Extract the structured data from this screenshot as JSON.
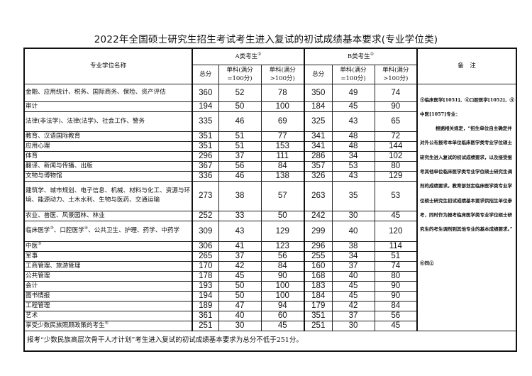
{
  "title": "2022年全国硕士研究生招生考试考生进入复试的初试成绩基本要求(专业学位类)",
  "header": {
    "name_col": "专业学位名称",
    "group_a": "A类考生",
    "group_a_note": "②",
    "group_b": "B类考生",
    "group_b_note": "②",
    "total": "总分",
    "single_100": "单科(满分=100分)",
    "single_gt100": "单科(满分>100分)",
    "remarks": "备　注"
  },
  "rows": [
    {
      "name": "金融、应用统计、税务、国际商务、保险、资产评估",
      "note": "",
      "a": [
        "360",
        "52",
        "78"
      ],
      "b": [
        "350",
        "49",
        "74"
      ]
    },
    {
      "name": "审计",
      "note": "",
      "a": [
        "194",
        "50",
        "100"
      ],
      "b": [
        "184",
        "45",
        "90"
      ]
    },
    {
      "name": "法律(非法学)、法律(法学)、社会工作、警务",
      "note": "",
      "a": [
        "335",
        "46",
        "69"
      ],
      "b": [
        "325",
        "43",
        "65"
      ]
    },
    {
      "name": "教育、汉语国际教育",
      "note": "",
      "a": [
        "351",
        "51",
        "77"
      ],
      "b": [
        "341",
        "48",
        "72"
      ]
    },
    {
      "name": "应用心理",
      "note": "",
      "a": [
        "351",
        "51",
        "153"
      ],
      "b": [
        "341",
        "48",
        "144"
      ]
    },
    {
      "name": "体育",
      "note": "",
      "a": [
        "296",
        "37",
        "111"
      ],
      "b": [
        "286",
        "34",
        "102"
      ]
    },
    {
      "name": "翻译、新闻与传播、出版",
      "note": "",
      "a": [
        "367",
        "56",
        "84"
      ],
      "b": [
        "357",
        "53",
        "80"
      ]
    },
    {
      "name": "文物与博物馆",
      "note": "",
      "a": [
        "336",
        "46",
        "138"
      ],
      "b": [
        "326",
        "43",
        "129"
      ]
    },
    {
      "name": "建筑学、城市规划、电子信息、机械、材料与化工、资源与环境、能源动力、土木水利、生物与医药、交通运输",
      "note": "",
      "a": [
        "273",
        "38",
        "57"
      ],
      "b": [
        "263",
        "35",
        "53"
      ]
    },
    {
      "name": "农业、兽医、风景园林、林业",
      "note": "",
      "a": [
        "252",
        "33",
        "50"
      ],
      "b": [
        "242",
        "30",
        "45"
      ]
    },
    {
      "name_parts": [
        "临床医学",
        "③",
        "、口腔医学",
        "④",
        "、公共卫生、护理、药学、中药学"
      ],
      "a": [
        "309",
        "43",
        "129"
      ],
      "b": [
        "299",
        "40",
        "120"
      ]
    },
    {
      "name": "中医",
      "note": "⑤",
      "a": [
        "306",
        "41",
        "123"
      ],
      "b": [
        "296",
        "38",
        "114"
      ]
    },
    {
      "name": "军事",
      "note": "",
      "a": [
        "265",
        "37",
        "56"
      ],
      "b": [
        "255",
        "34",
        "51"
      ]
    },
    {
      "name": "工商管理、旅游管理",
      "note": "",
      "a": [
        "170",
        "42",
        "84"
      ],
      "b": [
        "160",
        "37",
        "74"
      ]
    },
    {
      "name": "公共管理",
      "note": "",
      "a": [
        "178",
        "45",
        "90"
      ],
      "b": [
        "168",
        "40",
        "80"
      ]
    },
    {
      "name": "会计",
      "note": "",
      "a": [
        "193",
        "50",
        "100"
      ],
      "b": [
        "183",
        "45",
        "90"
      ]
    },
    {
      "name": "图书情报",
      "note": "",
      "a": [
        "194",
        "50",
        "100"
      ],
      "b": [
        "184",
        "45",
        "90"
      ]
    },
    {
      "name": "工程管理",
      "note": "",
      "a": [
        "189",
        "47",
        "94"
      ],
      "b": [
        "179",
        "42",
        "84"
      ]
    },
    {
      "name": "艺术",
      "note": "",
      "a": [
        "361",
        "40",
        "60"
      ],
      "b": [
        "351",
        "37",
        "56"
      ]
    },
    {
      "name": "享受少数民族照顾政策的考生",
      "note": "⑥",
      "a": [
        "251",
        "30",
        "45"
      ],
      "b": [
        "251",
        "30",
        "45"
      ]
    }
  ],
  "remarks": {
    "p1": "③临床医学[1051]、④口腔医学[1052]、⑤中医[1057]专业：",
    "p2": "根据相关规定，“招生单位自主确定并对外公布报考本单位临床医学类专业学位硕士研究生进入复试的初试成绩要求，以及接受报考其他单位临床医学类专业学位硕士研究生调剂的成绩要求。教育部划定临床医学类专业学位硕士研究生初试成绩基本要求供招生单位参考，同时作为报考临床医学类专业学位硕士研究生的考生调剂到其他专业的基本成绩要求。”",
    "p3": "⑥同②"
  },
  "footer": "报考“少数民族高层次骨干人才计划”考生进入复试的初试成绩基本要求为总分不低于251分。"
}
